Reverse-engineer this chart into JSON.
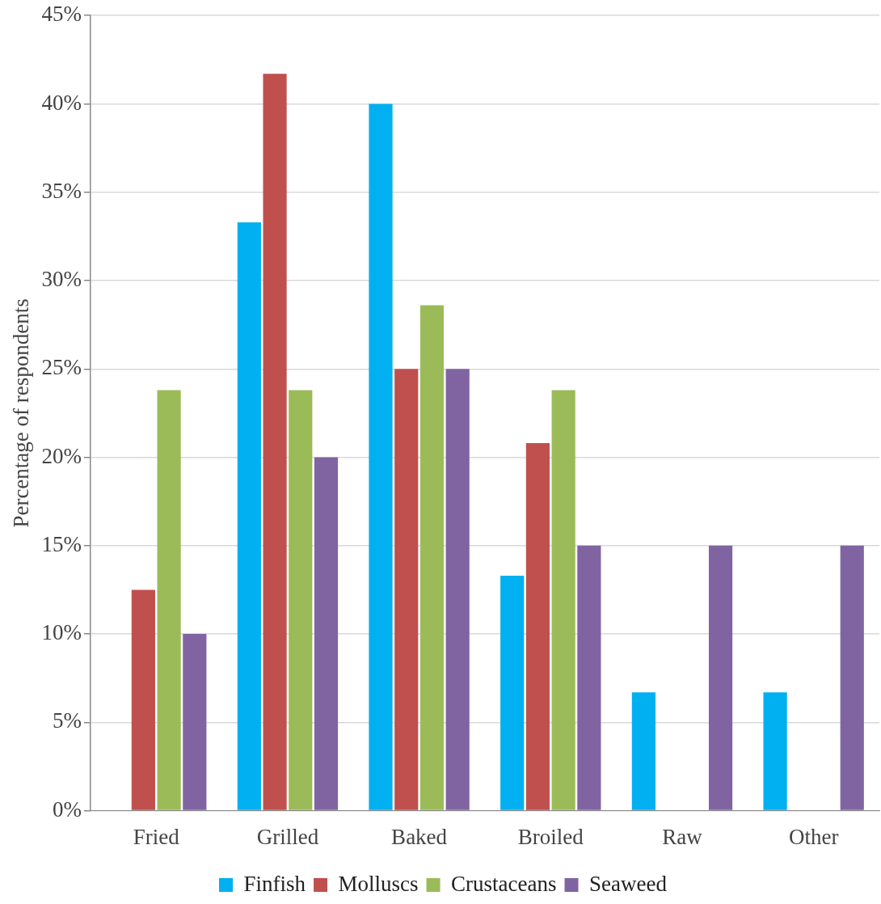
{
  "chart_data": {
    "type": "bar",
    "ylabel": "Percentage of respondents",
    "categories": [
      "Fried",
      "Grilled",
      "Baked",
      "Broiled",
      "Raw",
      "Other"
    ],
    "series": [
      {
        "name": "Finfish",
        "color": "#00b0f0",
        "values": [
          0,
          33.3,
          40,
          13.3,
          6.7,
          6.7
        ]
      },
      {
        "name": "Molluscs",
        "color": "#c0504d",
        "values": [
          12.5,
          41.7,
          25,
          20.8,
          0,
          0
        ]
      },
      {
        "name": "Crustaceans",
        "color": "#9bbb59",
        "values": [
          23.8,
          23.8,
          28.6,
          23.8,
          0,
          0
        ]
      },
      {
        "name": "Seaweed",
        "color": "#8064a2",
        "values": [
          10,
          20,
          25,
          15,
          15,
          15
        ]
      }
    ],
    "ylim": [
      0,
      45
    ],
    "yticks": [
      {
        "value": 0,
        "label": "0%"
      },
      {
        "value": 5,
        "label": "5%"
      },
      {
        "value": 10,
        "label": "10%"
      },
      {
        "value": 15,
        "label": "15%"
      },
      {
        "value": 20,
        "label": "20%"
      },
      {
        "value": 25,
        "label": "25%"
      },
      {
        "value": 30,
        "label": "30%"
      },
      {
        "value": 35,
        "label": "35%"
      },
      {
        "value": 40,
        "label": "40%"
      },
      {
        "value": 45,
        "label": "45%"
      }
    ],
    "grid": "y",
    "legend": "bottom"
  }
}
